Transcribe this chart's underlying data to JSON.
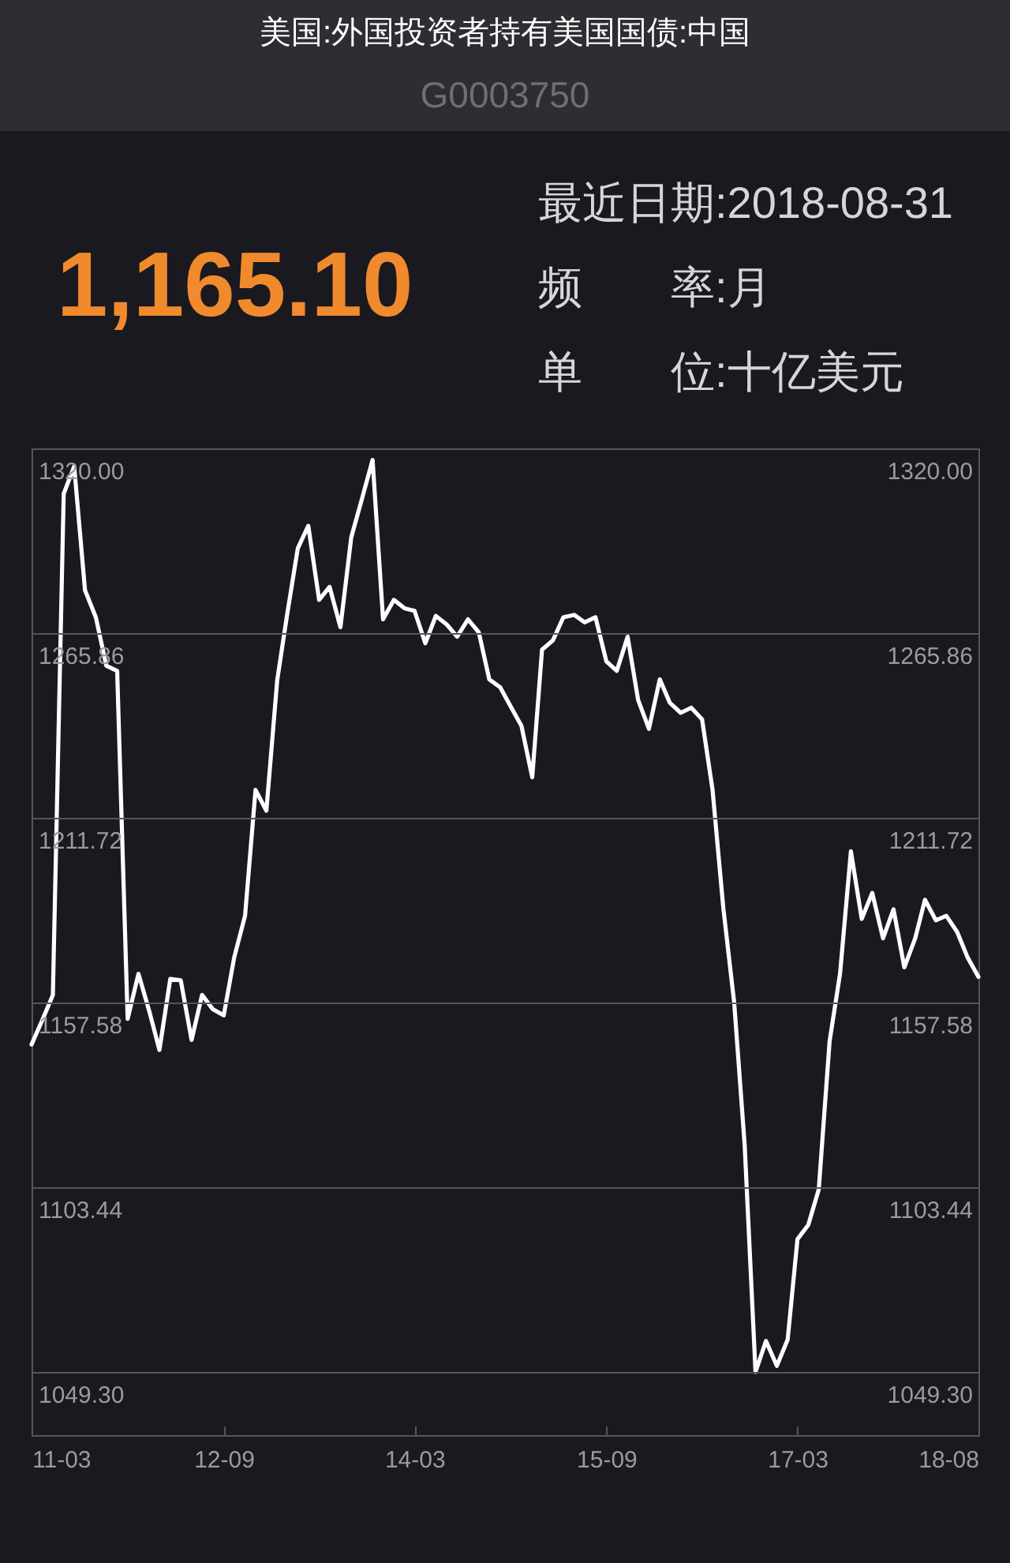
{
  "chart_data": {
    "type": "line",
    "title": "美国:外国投资者持有美国国债:中国",
    "subtitle": "G0003750",
    "annotations": [
      "1,165.10",
      "最近日期:2018-08-31",
      "频　　率:月",
      "单　　位:十亿美元"
    ],
    "x": [
      "2011-03",
      "2011-04",
      "2011-05",
      "2011-06",
      "2011-07",
      "2011-08",
      "2011-09",
      "2011-10",
      "2011-11",
      "2011-12",
      "2012-01",
      "2012-02",
      "2012-03",
      "2012-04",
      "2012-05",
      "2012-06",
      "2012-07",
      "2012-08",
      "2012-09",
      "2012-10",
      "2012-11",
      "2012-12",
      "2013-01",
      "2013-02",
      "2013-03",
      "2013-04",
      "2013-05",
      "2013-06",
      "2013-07",
      "2013-08",
      "2013-09",
      "2013-10",
      "2013-11",
      "2013-12",
      "2014-01",
      "2014-02",
      "2014-03",
      "2014-04",
      "2014-05",
      "2014-06",
      "2014-07",
      "2014-08",
      "2014-09",
      "2014-10",
      "2014-11",
      "2014-12",
      "2015-01",
      "2015-02",
      "2015-03",
      "2015-04",
      "2015-05",
      "2015-06",
      "2015-07",
      "2015-08",
      "2015-09",
      "2015-10",
      "2015-11",
      "2015-12",
      "2016-01",
      "2016-02",
      "2016-03",
      "2016-04",
      "2016-05",
      "2016-06",
      "2016-07",
      "2016-08",
      "2016-09",
      "2016-10",
      "2016-11",
      "2016-12",
      "2017-01",
      "2017-02",
      "2017-03",
      "2017-04",
      "2017-05",
      "2017-06",
      "2017-07",
      "2017-08",
      "2017-09",
      "2017-10",
      "2017-11",
      "2017-12",
      "2018-01",
      "2018-02",
      "2018-03",
      "2018-04",
      "2018-05",
      "2018-06",
      "2018-07",
      "2018-08"
    ],
    "series": [
      {
        "color": "#ffffff",
        "values": [
          1145.3,
          1152.5,
          1159.8,
          1306.7,
          1314.7,
          1278.4,
          1270.5,
          1256.3,
          1254.8,
          1152.8,
          1166.0,
          1155.0,
          1143.7,
          1164.5,
          1164.1,
          1146.6,
          1159.8,
          1155.6,
          1153.8,
          1170.8,
          1183.0,
          1219.9,
          1213.8,
          1252.0,
          1271.0,
          1290.7,
          1297.3,
          1275.6,
          1279.4,
          1267.6,
          1293.9,
          1305.0,
          1316.6,
          1269.9,
          1275.6,
          1273.1,
          1272.4,
          1262.9,
          1270.9,
          1268.4,
          1264.8,
          1269.9,
          1266.1,
          1252.3,
          1250.0,
          1244.4,
          1238.7,
          1223.6,
          1261.0,
          1263.7,
          1270.5,
          1271.2,
          1269.0,
          1270.5,
          1257.6,
          1254.8,
          1264.8,
          1246.3,
          1237.8,
          1252.3,
          1245.4,
          1242.5,
          1244.0,
          1240.6,
          1219.9,
          1185.1,
          1157.5,
          1115.7,
          1049.3,
          1058.4,
          1051.1,
          1058.8,
          1088.2,
          1092.4,
          1102.8,
          1146.2,
          1166.1,
          1201.9,
          1182.1,
          1189.7,
          1176.4,
          1184.9,
          1167.9,
          1176.4,
          1187.7,
          1181.7,
          1183.0,
          1178.3,
          1170.8,
          1165.1
        ]
      }
    ],
    "xlim": [
      "2011-03",
      "2018-08"
    ],
    "xticks": [
      {
        "value": "2011-03",
        "label": "11-03"
      },
      {
        "value": "2012-09",
        "label": "12-09"
      },
      {
        "value": "2014-03",
        "label": "14-03"
      },
      {
        "value": "2015-09",
        "label": "15-09"
      },
      {
        "value": "2017-03",
        "label": "17-03"
      },
      {
        "value": "2018-08",
        "label": "18-08"
      }
    ],
    "ylim": [
      1030.8,
      1320
    ],
    "yticks": [
      {
        "value": 1049.3,
        "label": "1049.30"
      },
      1103.44,
      1157.58,
      1211.72,
      1265.86,
      {
        "value": 1320,
        "label": "1320.00"
      }
    ],
    "y2lim": [
      1030.8,
      1320
    ],
    "y2ticks": [
      {
        "value": 1049.3,
        "label": "1049.30"
      },
      1103.44,
      1157.58,
      1211.72,
      1265.86,
      {
        "value": 1320,
        "label": "1320.00"
      }
    ],
    "grid": "y"
  }
}
